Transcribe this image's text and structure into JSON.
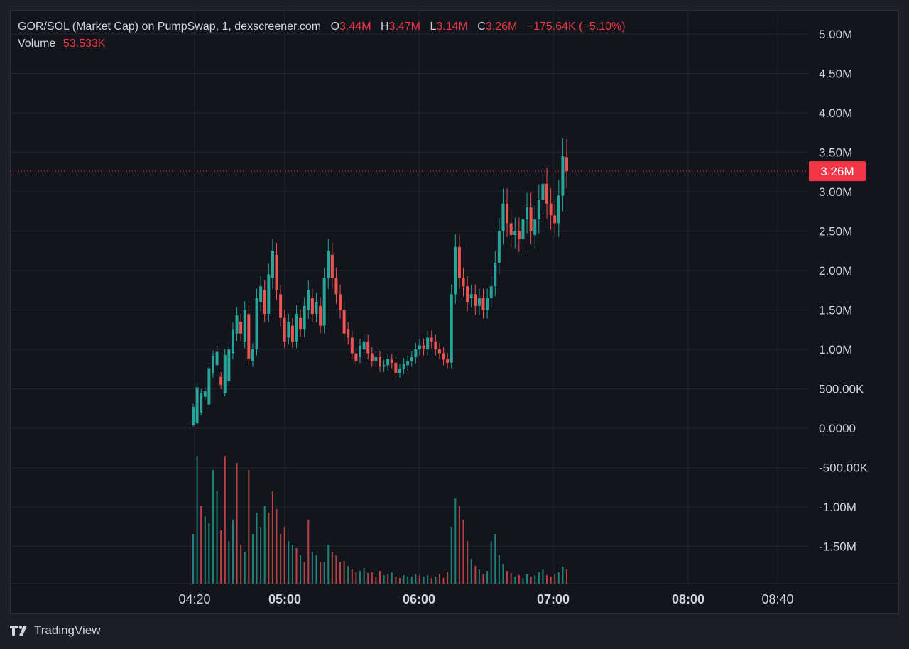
{
  "legend": {
    "symbol": "GOR/SOL (Market Cap) on PumpSwap, 1, dexscreener.com",
    "o_label": "O",
    "o_value": "3.44M",
    "h_label": "H",
    "h_value": "3.47M",
    "l_label": "L",
    "l_value": "3.14M",
    "c_label": "C",
    "c_value": "3.26M",
    "change": "−175.64K (−5.10%)",
    "volume_label": "Volume",
    "volume_value": "53.533K"
  },
  "last_price_label": "3.26M",
  "branding": {
    "name": "TradingView",
    "icon": "tradingview-logo-icon"
  },
  "colors": {
    "background": "#13151d",
    "up": "#26a69a",
    "down": "#ef5350",
    "price_tag": "#f23645",
    "grid": "#22252e",
    "text": "#d1d4dc"
  },
  "chart_data": {
    "type": "candlestick",
    "interval": "1m",
    "price_axis": {
      "ticks": [
        5000000,
        4500000,
        4000000,
        3500000,
        3000000,
        2500000,
        2000000,
        1500000,
        1000000,
        500000,
        0,
        -500000,
        -1000000,
        -1500000
      ],
      "tick_labels": [
        "5.00M",
        "4.50M",
        "4.00M",
        "3.50M",
        "3.00M",
        "2.50M",
        "2.00M",
        "1.50M",
        "1.00M",
        "500.00K",
        "0.0000",
        "-500.00K",
        "-1.00M",
        "-1.50M"
      ]
    },
    "time_axis": {
      "ticks": [
        "04:20",
        "05:00",
        "06:00",
        "07:00",
        "08:00",
        "08:40"
      ],
      "bold": [
        false,
        true,
        true,
        true,
        true,
        false
      ]
    },
    "last_price": 3260000,
    "series": [
      {
        "name": "Market Cap",
        "values": [
          [
            40,
            270
          ],
          [
            60,
            520
          ],
          [
            200,
            450
          ],
          [
            400,
            470
          ],
          [
            300,
            760
          ],
          [
            700,
            910
          ],
          [
            800,
            970
          ],
          [
            650,
            550
          ],
          [
            450,
            930
          ],
          [
            600,
            1000
          ],
          [
            950,
            1250
          ],
          [
            1200,
            1430
          ],
          [
            1350,
            1200
          ],
          [
            1100,
            1500
          ],
          [
            1450,
            880
          ],
          [
            850,
            1000
          ],
          [
            1000,
            1650
          ],
          [
            1600,
            1800
          ],
          [
            1750,
            1450
          ],
          [
            1450,
            1950
          ],
          [
            1900,
            2250
          ],
          [
            2200,
            1750
          ],
          [
            1700,
            1400
          ],
          [
            1400,
            1100
          ],
          [
            1150,
            1350
          ],
          [
            1300,
            1100
          ],
          [
            1100,
            1450
          ],
          [
            1400,
            1250
          ],
          [
            1250,
            1550
          ],
          [
            1500,
            1750
          ],
          [
            1650,
            1450
          ],
          [
            1450,
            1600
          ],
          [
            1550,
            1300
          ],
          [
            1300,
            1900
          ],
          [
            1900,
            2250
          ],
          [
            2200,
            1900
          ],
          [
            1900,
            1700
          ],
          [
            1700,
            1500
          ],
          [
            1500,
            1200
          ],
          [
            1250,
            1150
          ],
          [
            1150,
            950
          ],
          [
            950,
            850
          ],
          [
            900,
            1050
          ],
          [
            1000,
            1100
          ],
          [
            1100,
            950
          ],
          [
            950,
            850
          ],
          [
            850,
            900
          ],
          [
            900,
            780
          ],
          [
            780,
            800
          ],
          [
            800,
            880
          ],
          [
            870,
            830
          ],
          [
            830,
            700
          ],
          [
            700,
            750
          ],
          [
            750,
            820
          ],
          [
            800,
            850
          ],
          [
            850,
            900
          ],
          [
            900,
            1000
          ],
          [
            1000,
            1050
          ],
          [
            1050,
            1000
          ],
          [
            1000,
            1150
          ],
          [
            1150,
            1100
          ],
          [
            1100,
            1000
          ],
          [
            1000,
            950
          ],
          [
            950,
            870
          ],
          [
            880,
            830
          ],
          [
            830,
            1700
          ],
          [
            1700,
            2300
          ],
          [
            2300,
            1900
          ],
          [
            1900,
            1800
          ],
          [
            1800,
            1600
          ],
          [
            1650,
            1700
          ],
          [
            1700,
            1550
          ],
          [
            1550,
            1650
          ],
          [
            1650,
            1500
          ],
          [
            1500,
            1650
          ],
          [
            1650,
            1800
          ],
          [
            1800,
            2100
          ],
          [
            2100,
            2500
          ],
          [
            2500,
            2850
          ],
          [
            2850,
            2600
          ],
          [
            2600,
            2450
          ],
          [
            2450,
            2500
          ],
          [
            2500,
            2400
          ],
          [
            2400,
            2650
          ],
          [
            2650,
            2800
          ],
          [
            2800,
            2500
          ],
          [
            2450,
            2650
          ],
          [
            2650,
            2900
          ],
          [
            2900,
            3100
          ],
          [
            3100,
            2850
          ],
          [
            2850,
            2700
          ],
          [
            2700,
            2600
          ],
          [
            2600,
            2950
          ],
          [
            2950,
            3450
          ],
          [
            3440,
            3260
          ]
        ]
      }
    ],
    "volume": {
      "label": "Volume",
      "last_value": 53533,
      "values": [
        [
          70,
          1
        ],
        [
          180,
          1
        ],
        [
          110,
          0
        ],
        [
          95,
          1
        ],
        [
          85,
          1
        ],
        [
          160,
          1
        ],
        [
          130,
          1
        ],
        [
          75,
          0
        ],
        [
          180,
          0
        ],
        [
          60,
          1
        ],
        [
          90,
          1
        ],
        [
          170,
          0
        ],
        [
          55,
          0
        ],
        [
          45,
          1
        ],
        [
          160,
          0
        ],
        [
          70,
          1
        ],
        [
          100,
          1
        ],
        [
          80,
          1
        ],
        [
          110,
          1
        ],
        [
          100,
          0
        ],
        [
          130,
          0
        ],
        [
          105,
          0
        ],
        [
          70,
          0
        ],
        [
          80,
          0
        ],
        [
          60,
          1
        ],
        [
          55,
          1
        ],
        [
          50,
          0
        ],
        [
          40,
          1
        ],
        [
          30,
          0
        ],
        [
          90,
          0
        ],
        [
          45,
          1
        ],
        [
          40,
          1
        ],
        [
          30,
          0
        ],
        [
          30,
          1
        ],
        [
          55,
          1
        ],
        [
          45,
          0
        ],
        [
          40,
          0
        ],
        [
          30,
          0
        ],
        [
          32,
          0
        ],
        [
          25,
          1
        ],
        [
          20,
          0
        ],
        [
          16,
          0
        ],
        [
          18,
          1
        ],
        [
          22,
          1
        ],
        [
          15,
          0
        ],
        [
          16,
          0
        ],
        [
          10,
          0
        ],
        [
          18,
          0
        ],
        [
          12,
          1
        ],
        [
          14,
          0
        ],
        [
          16,
          1
        ],
        [
          10,
          0
        ],
        [
          8,
          0
        ],
        [
          12,
          1
        ],
        [
          10,
          1
        ],
        [
          10,
          1
        ],
        [
          14,
          1
        ],
        [
          12,
          0
        ],
        [
          10,
          1
        ],
        [
          12,
          1
        ],
        [
          8,
          0
        ],
        [
          10,
          1
        ],
        [
          14,
          0
        ],
        [
          8,
          0
        ],
        [
          16,
          0
        ],
        [
          80,
          1
        ],
        [
          120,
          1
        ],
        [
          110,
          0
        ],
        [
          90,
          0
        ],
        [
          60,
          0
        ],
        [
          35,
          1
        ],
        [
          25,
          0
        ],
        [
          20,
          1
        ],
        [
          14,
          0
        ],
        [
          18,
          1
        ],
        [
          60,
          1
        ],
        [
          70,
          1
        ],
        [
          40,
          1
        ],
        [
          28,
          1
        ],
        [
          18,
          0
        ],
        [
          15,
          0
        ],
        [
          10,
          1
        ],
        [
          12,
          0
        ],
        [
          8,
          1
        ],
        [
          14,
          1
        ],
        [
          10,
          0
        ],
        [
          12,
          1
        ],
        [
          16,
          1
        ],
        [
          20,
          1
        ],
        [
          12,
          0
        ],
        [
          10,
          0
        ],
        [
          14,
          0
        ],
        [
          16,
          1
        ],
        [
          24,
          1
        ],
        [
          20,
          0
        ]
      ]
    }
  }
}
